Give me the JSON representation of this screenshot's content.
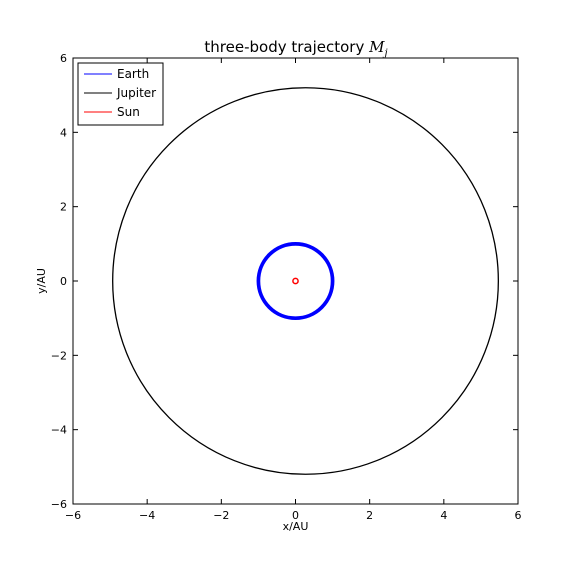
{
  "chart_data": {
    "type": "line",
    "title": "three-body trajectory ",
    "title_math": "M",
    "title_math_sub": "j",
    "xlabel": "x/AU",
    "ylabel": "y/AU",
    "xlim": [
      -6,
      6
    ],
    "ylim": [
      -6,
      6
    ],
    "xticks": [
      -6,
      -4,
      -2,
      0,
      2,
      4,
      6
    ],
    "yticks": [
      -6,
      -4,
      -2,
      0,
      2,
      4,
      6
    ],
    "xtick_labels": [
      "−6",
      "−4",
      "−2",
      "0",
      "2",
      "4",
      "6"
    ],
    "ytick_labels": [
      "−6",
      "−4",
      "−2",
      "0",
      "2",
      "4",
      "6"
    ],
    "grid": false,
    "legend_position": "top-left",
    "series": [
      {
        "name": "Earth",
        "color": "#0000ff",
        "shape": "circle",
        "center": [
          0.0,
          0.0
        ],
        "radius": 1.0,
        "ring_width_au": 0.1
      },
      {
        "name": "Jupiter",
        "color": "#000000",
        "shape": "circle",
        "center": [
          0.27,
          0.0
        ],
        "radius": 5.2
      },
      {
        "name": "Sun",
        "color": "#ff0000",
        "shape": "circle",
        "center": [
          0.0,
          0.0
        ],
        "radius": 0.07
      }
    ]
  }
}
